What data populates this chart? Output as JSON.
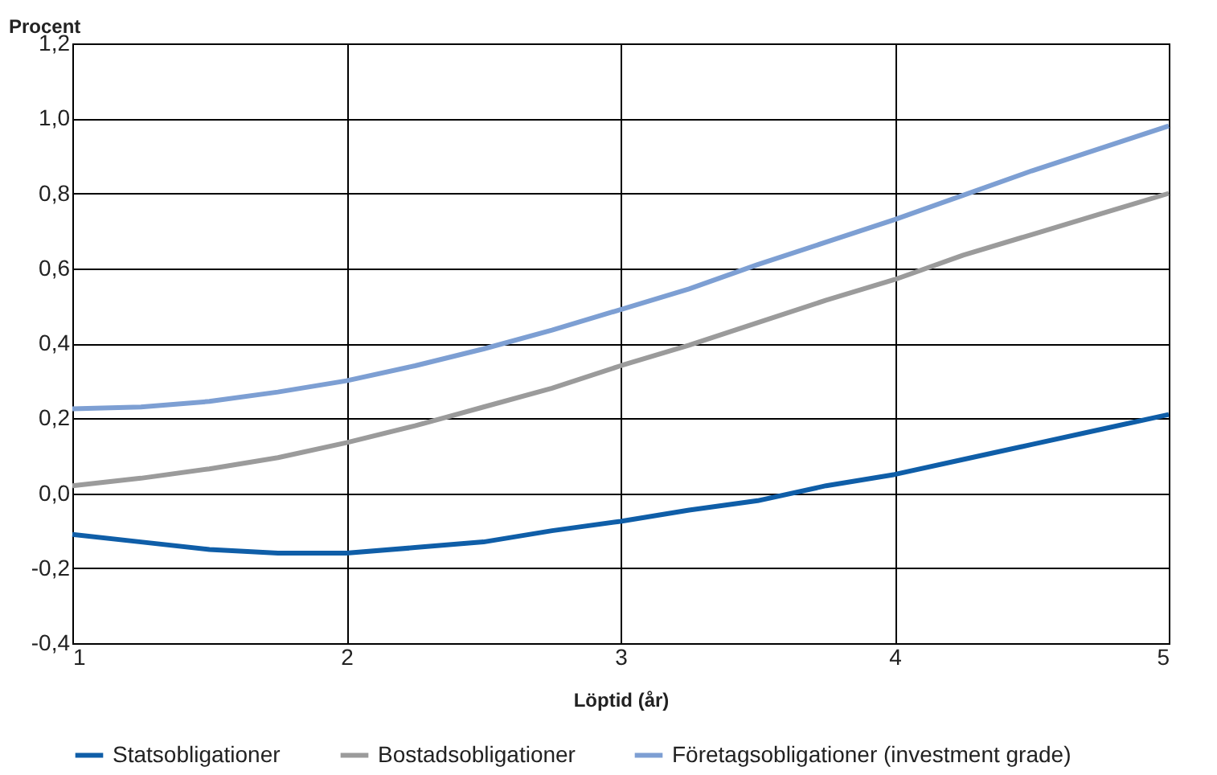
{
  "chart_data": {
    "type": "line",
    "ylabel": "Procent",
    "xlabel": "Löptid (år)",
    "x": [
      1,
      1.25,
      1.5,
      1.75,
      2,
      2.25,
      2.5,
      2.75,
      3,
      3.25,
      3.5,
      3.75,
      4,
      4.25,
      4.5,
      4.75,
      5
    ],
    "series": [
      {
        "name": "Statsobligationer",
        "color": "#0f5ea8",
        "values": [
          -0.11,
          -0.13,
          -0.15,
          -0.16,
          -0.16,
          -0.145,
          -0.13,
          -0.1,
          -0.075,
          -0.045,
          -0.02,
          0.02,
          0.05,
          0.09,
          0.13,
          0.17,
          0.21
        ]
      },
      {
        "name": "Bostadsobligationer",
        "color": "#9b9b9b",
        "values": [
          0.02,
          0.04,
          0.065,
          0.095,
          0.135,
          0.18,
          0.23,
          0.28,
          0.34,
          0.395,
          0.455,
          0.515,
          0.57,
          0.635,
          0.69,
          0.745,
          0.8
        ]
      },
      {
        "name": "Företagsobligationer (investment grade)",
        "color": "#7d9fd3",
        "values": [
          0.225,
          0.23,
          0.245,
          0.27,
          0.3,
          0.34,
          0.385,
          0.435,
          0.49,
          0.545,
          0.61,
          0.67,
          0.73,
          0.795,
          0.86,
          0.92,
          0.98
        ]
      }
    ],
    "xlim": [
      1,
      5
    ],
    "xticks": [
      1,
      2,
      3,
      4,
      5
    ],
    "ylim": [
      -0.4,
      1.2
    ],
    "yticks": [
      {
        "value": -0.4,
        "label": "-0,4"
      },
      {
        "value": -0.2,
        "label": "-0,2"
      },
      {
        "value": 0,
        "label": "0,0"
      },
      {
        "value": 0.2,
        "label": "0,2"
      },
      {
        "value": 0.4,
        "label": "0,4"
      },
      {
        "value": 0.6,
        "label": "0,6"
      },
      {
        "value": 0.8,
        "label": "0,8"
      },
      {
        "value": 1,
        "label": "1,0"
      },
      {
        "value": 1.2,
        "label": "1,2"
      }
    ],
    "grid": true,
    "legend": "bottom",
    "line_style": "solid"
  }
}
